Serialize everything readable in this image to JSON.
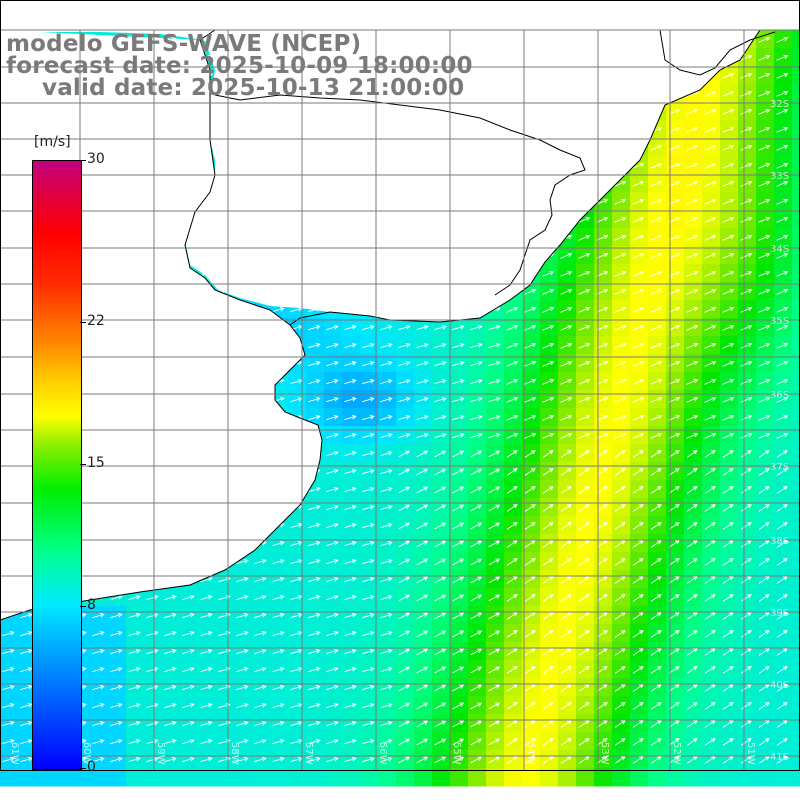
{
  "title": {
    "line1": "modelo GEFS-WAVE (NCEP)",
    "line2": "forecast date: 2025-10-09 18:00:00",
    "line3": "valid date: 2025-10-13 21:00:00"
  },
  "colorbar": {
    "unit": "[m/s]",
    "ticks": [
      "30",
      "22",
      "15",
      "8",
      "0"
    ],
    "tick_values": [
      30,
      22,
      15,
      8,
      0
    ],
    "range": [
      0,
      30
    ],
    "colors": [
      "#0000ff",
      "#0088ff",
      "#00e8ff",
      "#00ff88",
      "#00ee00",
      "#88ee00",
      "#ffff00",
      "#ff8800",
      "#ff0000",
      "#c00080"
    ]
  },
  "map": {
    "lat_labels": [
      "32S",
      "33S",
      "34S",
      "35S",
      "36S",
      "37S",
      "38S",
      "39S",
      "40S",
      "41S"
    ],
    "lon_labels": [
      "61W",
      "60W",
      "59W",
      "58W",
      "57W",
      "56W",
      "55W",
      "54W",
      "53W",
      "52W",
      "51W"
    ],
    "wind_direction": "south-westerly (arrows pointing north-east)",
    "land_color": "#ffffff",
    "grid_color": "#808080"
  }
}
